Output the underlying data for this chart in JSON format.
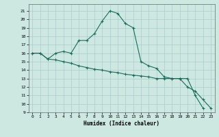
{
  "xlabel": "Humidex (Indice chaleur)",
  "bg_color": "#cce8e0",
  "grid_color": "#aacccc",
  "line_color": "#1a6b5a",
  "curve1_x": [
    0,
    1,
    2,
    3,
    4,
    5,
    6,
    7,
    8,
    9,
    10,
    11,
    12,
    13,
    14,
    15,
    16,
    17,
    18,
    19,
    20,
    21,
    22,
    23
  ],
  "curve1_y": [
    16,
    16,
    15.3,
    16,
    16.2,
    16.0,
    17.5,
    17.5,
    18.3,
    19.8,
    21.0,
    20.7,
    19.5,
    19.0,
    15.0,
    14.5,
    14.2,
    13.2,
    13.0,
    13.0,
    12.0,
    11.5,
    10.5,
    9.5
  ],
  "curve2_x": [
    0,
    1,
    2,
    3,
    4,
    5,
    6,
    7,
    8,
    9,
    10,
    11,
    12,
    13,
    14,
    15,
    16,
    17,
    18,
    19,
    20,
    21,
    22
  ],
  "curve2_y": [
    16,
    16,
    15.3,
    15.2,
    15.0,
    14.8,
    14.5,
    14.3,
    14.1,
    14.0,
    13.8,
    13.7,
    13.5,
    13.4,
    13.3,
    13.2,
    13.0,
    13.0,
    13.0,
    13.0,
    13.0,
    11.0,
    9.5
  ],
  "xlim": [
    -0.5,
    23.5
  ],
  "ylim": [
    9,
    21.8
  ],
  "yticks": [
    9,
    10,
    11,
    12,
    13,
    14,
    15,
    16,
    17,
    18,
    19,
    20,
    21
  ],
  "xticks": [
    0,
    1,
    2,
    3,
    4,
    5,
    6,
    7,
    8,
    9,
    10,
    11,
    12,
    13,
    14,
    15,
    16,
    17,
    18,
    19,
    20,
    21,
    22,
    23
  ]
}
